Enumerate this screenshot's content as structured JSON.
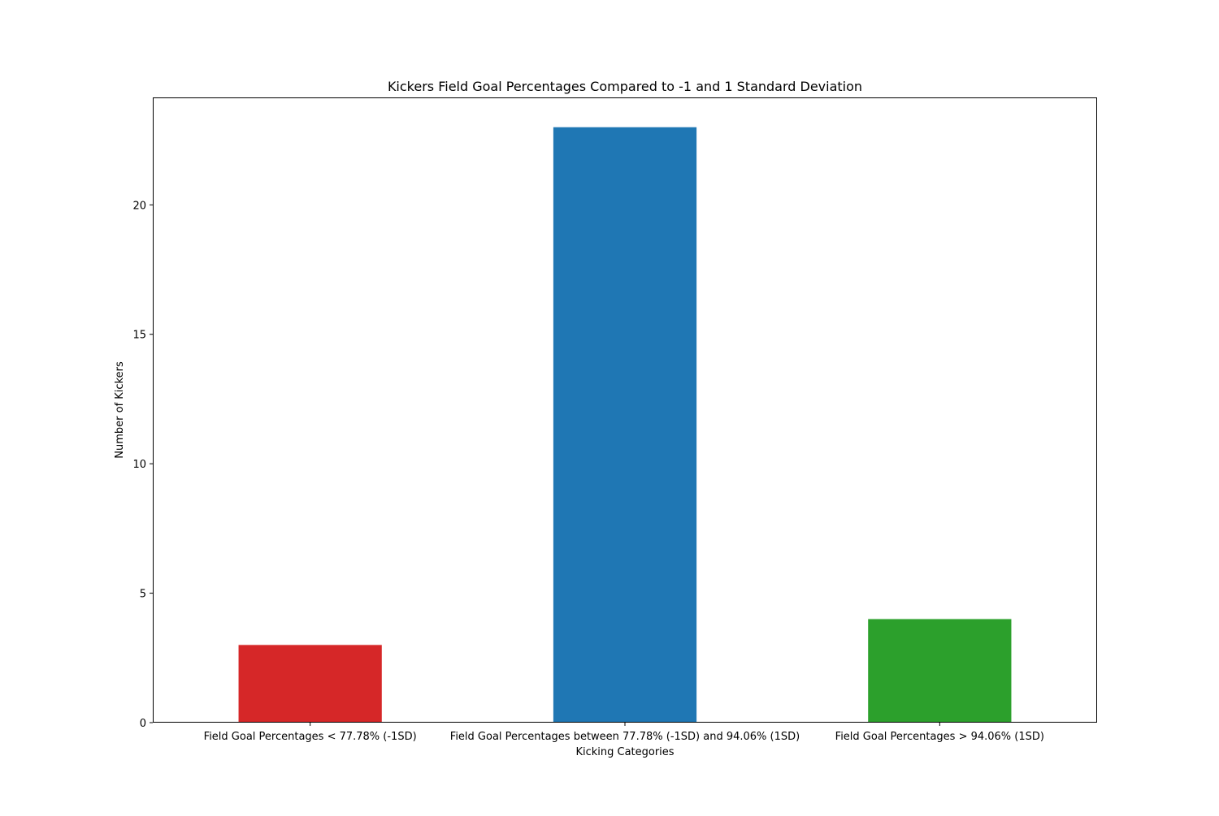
{
  "chart_data": {
    "type": "bar",
    "title": "Kickers Field Goal Percentages Compared to -1 and 1 Standard Deviation",
    "xlabel": "Kicking Categories",
    "ylabel": "Number of Kickers",
    "categories": [
      "Field Goal Percentages < 77.78% (-1SD)",
      "Field Goal Percentages between 77.78% (-1SD) and 94.06% (1SD)",
      "Field Goal Percentages > 94.06% (1SD)"
    ],
    "values": [
      3,
      23,
      4
    ],
    "colors": [
      "#d62728",
      "#1f77b4",
      "#2ca02c"
    ],
    "ylim": [
      0,
      24.15
    ],
    "yticks": [
      0,
      5,
      10,
      15,
      20
    ],
    "grid": false,
    "legend": "none"
  }
}
